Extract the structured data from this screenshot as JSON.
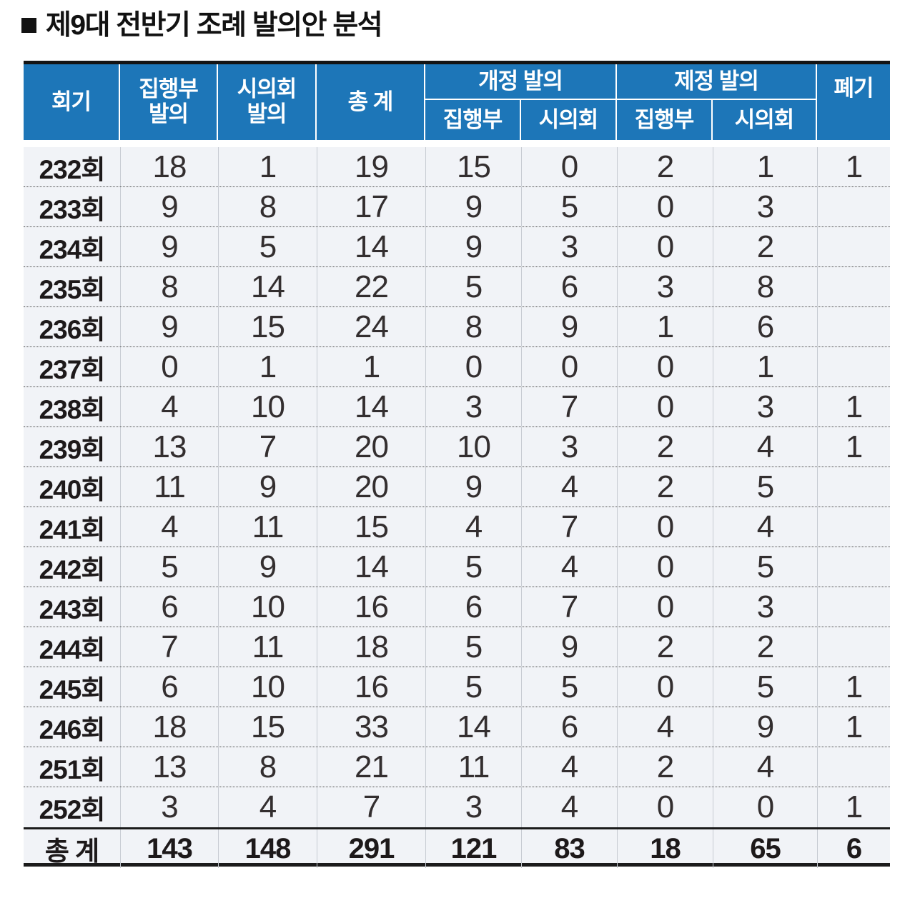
{
  "title": {
    "bullet": "■",
    "text": "제9대 전반기 조례 발의안 분석"
  },
  "colors": {
    "header_blue": "#1d76b8",
    "row_background": "#f1f3f7",
    "border_dark": "#141414",
    "column_separator": "#c7cbd2"
  },
  "chart_data": {
    "type": "table",
    "title": "제9대 전반기 조례 발의안 분석",
    "header": {
      "session": "회기",
      "exec_line1": "집행부",
      "exec_line2": "발의",
      "council_line1": "시의회",
      "council_line2": "발의",
      "total": "총 계",
      "amendment_group": "개정 발의",
      "enactment_group": "제정 발의",
      "amendment_sub_exec": "집행부",
      "amendment_sub_council": "시의회",
      "enactment_sub_exec": "집행부",
      "enactment_sub_council": "시의회",
      "discard": "폐기"
    },
    "columns": [
      "회기",
      "집행부 발의",
      "시의회 발의",
      "총 계",
      "개정 발의-집행부",
      "개정 발의-시의회",
      "제정 발의-집행부",
      "제정 발의-시의회",
      "폐기"
    ],
    "rows": [
      [
        "232회",
        "18",
        "1",
        "19",
        "15",
        "0",
        "2",
        "1",
        "1"
      ],
      [
        "233회",
        "9",
        "8",
        "17",
        "9",
        "5",
        "0",
        "3",
        ""
      ],
      [
        "234회",
        "9",
        "5",
        "14",
        "9",
        "3",
        "0",
        "2",
        ""
      ],
      [
        "235회",
        "8",
        "14",
        "22",
        "5",
        "6",
        "3",
        "8",
        ""
      ],
      [
        "236회",
        "9",
        "15",
        "24",
        "8",
        "9",
        "1",
        "6",
        ""
      ],
      [
        "237회",
        "0",
        "1",
        "1",
        "0",
        "0",
        "0",
        "1",
        ""
      ],
      [
        "238회",
        "4",
        "10",
        "14",
        "3",
        "7",
        "0",
        "3",
        "1"
      ],
      [
        "239회",
        "13",
        "7",
        "20",
        "10",
        "3",
        "2",
        "4",
        "1"
      ],
      [
        "240회",
        "11",
        "9",
        "20",
        "9",
        "4",
        "2",
        "5",
        ""
      ],
      [
        "241회",
        "4",
        "11",
        "15",
        "4",
        "7",
        "0",
        "4",
        ""
      ],
      [
        "242회",
        "5",
        "9",
        "14",
        "5",
        "4",
        "0",
        "5",
        ""
      ],
      [
        "243회",
        "6",
        "10",
        "16",
        "6",
        "7",
        "0",
        "3",
        ""
      ],
      [
        "244회",
        "7",
        "11",
        "18",
        "5",
        "9",
        "2",
        "2",
        ""
      ],
      [
        "245회",
        "6",
        "10",
        "16",
        "5",
        "5",
        "0",
        "5",
        "1"
      ],
      [
        "246회",
        "18",
        "15",
        "33",
        "14",
        "6",
        "4",
        "9",
        "1"
      ],
      [
        "251회",
        "13",
        "8",
        "21",
        "11",
        "4",
        "2",
        "4",
        ""
      ],
      [
        "252회",
        "3",
        "4",
        "7",
        "3",
        "4",
        "0",
        "0",
        "1"
      ]
    ],
    "total_row": [
      "총 계",
      "143",
      "148",
      "291",
      "121",
      "83",
      "18",
      "65",
      "6"
    ]
  }
}
